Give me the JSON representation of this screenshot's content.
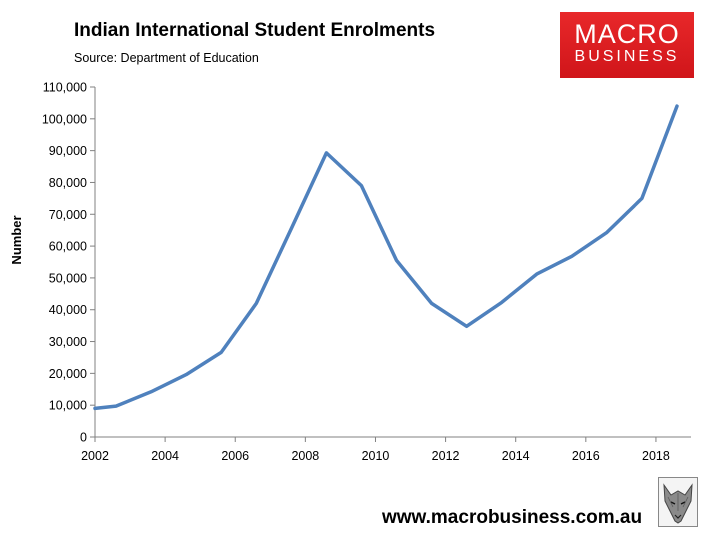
{
  "header": {
    "title": "Indian International Student Enrolments",
    "subtitle": "Source: Department of Education"
  },
  "logo": {
    "line1": "MACRO",
    "line2": "BUSINESS",
    "icon": "wolf-icon"
  },
  "footer": {
    "url": "www.macrobusiness.com.au"
  },
  "colors": {
    "line": "#4f81bd",
    "logo_bg": "#d9181e"
  },
  "chart_data": {
    "type": "line",
    "title": "Indian International Student Enrolments",
    "ylabel": "Number",
    "xlabel": "",
    "xlim": [
      2002,
      2019
    ],
    "ylim": [
      0,
      110000
    ],
    "x_ticks": [
      2002,
      2004,
      2006,
      2008,
      2010,
      2012,
      2014,
      2016,
      2018
    ],
    "y_ticks": [
      0,
      10000,
      20000,
      30000,
      40000,
      50000,
      60000,
      70000,
      80000,
      90000,
      100000,
      110000
    ],
    "y_tick_labels": [
      "0",
      "10,000",
      "20,000",
      "30,000",
      "40,000",
      "50,000",
      "60,000",
      "70,000",
      "80,000",
      "90,000",
      "100,000",
      "110,000"
    ],
    "x_tick_labels": [
      "2002",
      "2004",
      "2006",
      "2008",
      "2010",
      "2012",
      "2014",
      "2016",
      "2018"
    ],
    "grid": false,
    "legend": "none",
    "series": [
      {
        "x": [
          2002,
          2002.6,
          2003.6,
          2004.6,
          2005.6,
          2006.6,
          2007.6,
          2008.6,
          2009.6,
          2010.6,
          2011.6,
          2012.6,
          2013.6,
          2014.6,
          2015.6,
          2016.6,
          2017.6,
          2018.6
        ],
        "values": [
          9000,
          9700,
          14200,
          19600,
          26600,
          42000,
          65500,
          89300,
          79000,
          55500,
          42000,
          34800,
          42300,
          51200,
          56800,
          64300,
          75000,
          104000
        ]
      }
    ]
  }
}
